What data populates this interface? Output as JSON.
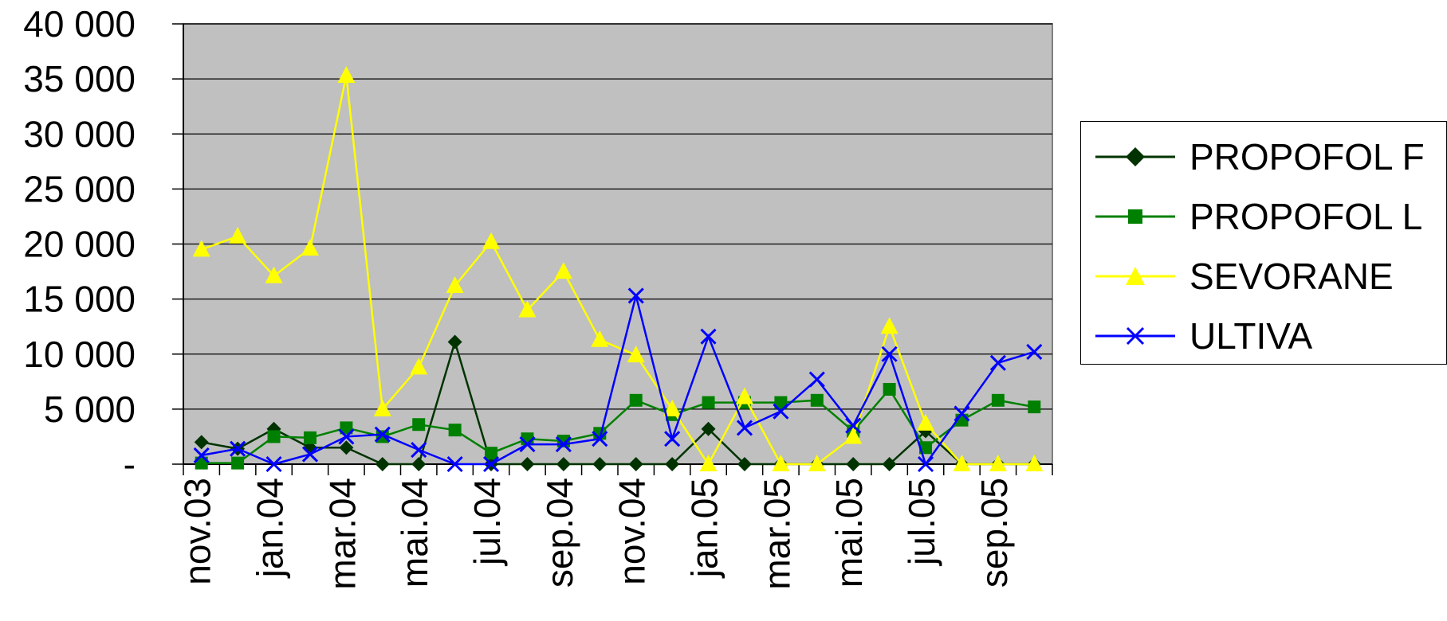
{
  "chart_data": {
    "type": "line",
    "ylim": [
      0,
      40000
    ],
    "y_ticks": [
      {
        "value": 0,
        "label": "-"
      },
      {
        "value": 5000,
        "label": "5 000"
      },
      {
        "value": 10000,
        "label": "10 000"
      },
      {
        "value": 15000,
        "label": "15 000"
      },
      {
        "value": 20000,
        "label": "20 000"
      },
      {
        "value": 25000,
        "label": "25 000"
      },
      {
        "value": 30000,
        "label": "30 000"
      },
      {
        "value": 35000,
        "label": "35 000"
      },
      {
        "value": 40000,
        "label": "40 000"
      }
    ],
    "x": [
      "nov.03",
      "dec.03",
      "jan.04",
      "feb.04",
      "mar.04",
      "apr.04",
      "mai.04",
      "jun.04",
      "jul.04",
      "aug.04",
      "sep.04",
      "oct.04",
      "nov.04",
      "dec.04",
      "jan.05",
      "feb.05",
      "mar.05",
      "apr.05",
      "mai.05",
      "jun.05",
      "jul.05",
      "aug.05",
      "sep.05",
      "oct.05"
    ],
    "x_tick_labels": [
      "nov.03",
      "jan.04",
      "mar.04",
      "mai.04",
      "jul.04",
      "sep.04",
      "nov.04",
      "jan.05",
      "mar.05",
      "mai.05",
      "jul.05",
      "sep.05"
    ],
    "grid": true,
    "plot_background": "#c0c0c0",
    "legend_position": "right",
    "series": [
      {
        "name": "PROPOFOL F",
        "color": "#003300",
        "marker": "diamond",
        "values": [
          2000,
          1400,
          3200,
          1500,
          1500,
          0,
          0,
          11100,
          0,
          0,
          0,
          0,
          0,
          0,
          3200,
          0,
          0,
          0,
          0,
          0,
          3000,
          0,
          0,
          0
        ]
      },
      {
        "name": "PROPOFOL L",
        "color": "#008000",
        "marker": "square",
        "values": [
          100,
          100,
          2500,
          2400,
          3300,
          2500,
          3600,
          3100,
          1000,
          2300,
          2100,
          2800,
          5800,
          4500,
          5600,
          5600,
          5600,
          5800,
          3000,
          6800,
          1500,
          4000,
          5800,
          5200
        ]
      },
      {
        "name": "SEVORANE",
        "color": "#ffff00",
        "marker": "triangle",
        "values": [
          19500,
          20700,
          17100,
          19600,
          35300,
          5000,
          8800,
          16200,
          20200,
          14000,
          17500,
          11300,
          9900,
          5000,
          0,
          6100,
          0,
          0,
          2500,
          12500,
          3700,
          0,
          0,
          0
        ]
      },
      {
        "name": "ULTIVA",
        "color": "#0000ff",
        "marker": "x",
        "values": [
          800,
          1400,
          0,
          900,
          2500,
          2700,
          1300,
          0,
          0,
          1800,
          1800,
          2300,
          15300,
          2300,
          11600,
          3300,
          4800,
          7700,
          3500,
          10000,
          0,
          4600,
          9200,
          10200
        ]
      }
    ]
  }
}
